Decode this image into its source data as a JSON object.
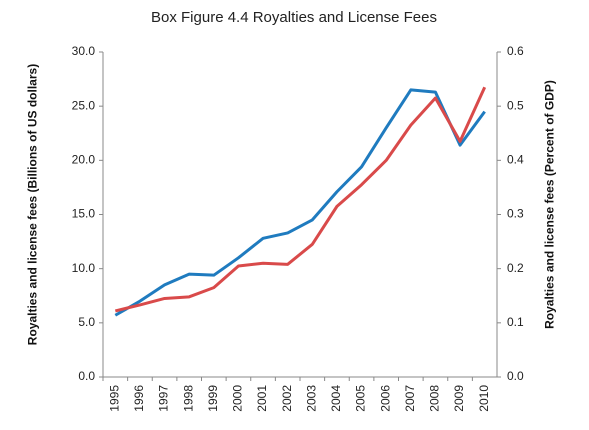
{
  "chart_data": {
    "type": "line",
    "title": "Box Figure 4.4 Royalties and License Fees",
    "ylabel": "Royalties and license fees (Billions of US dollars)",
    "y2label": "Royalties and license fees (Percent of GDP)",
    "categories": [
      "1995",
      "1996",
      "1997",
      "1998",
      "1999",
      "2000",
      "2001",
      "2002",
      "2003",
      "2004",
      "2005",
      "2006",
      "2007",
      "2008",
      "2009",
      "2010"
    ],
    "series": [
      {
        "color": "#1f7bbf",
        "values": [
          5.7,
          7.0,
          8.5,
          9.5,
          9.4,
          11.0,
          12.8,
          13.3,
          14.5,
          17.1,
          19.4,
          23.0,
          26.5,
          26.3,
          21.4,
          24.5
        ]
      },
      {
        "color": "#d94a4a",
        "axis": "y2",
        "values": [
          0.122,
          0.133,
          0.145,
          0.148,
          0.165,
          0.205,
          0.21,
          0.208,
          0.245,
          0.315,
          0.355,
          0.4,
          0.465,
          0.515,
          0.435,
          0.535
        ]
      }
    ],
    "ylim": [
      0,
      30
    ],
    "yticks": [
      {
        "value": 0,
        "label": "0.0"
      },
      {
        "value": 5,
        "label": "5.0"
      },
      {
        "value": 10,
        "label": "10.0"
      },
      {
        "value": 15,
        "label": "15.0"
      },
      {
        "value": 20,
        "label": "20.0"
      },
      {
        "value": 25,
        "label": "25.0"
      },
      {
        "value": 30,
        "label": "30.0"
      }
    ],
    "y2lim": [
      0,
      0.6
    ],
    "y2ticks": [
      {
        "value": 0,
        "label": "0.0"
      },
      0.1,
      0.2,
      0.3,
      0.4,
      0.5,
      0.6
    ],
    "grid": false
  }
}
